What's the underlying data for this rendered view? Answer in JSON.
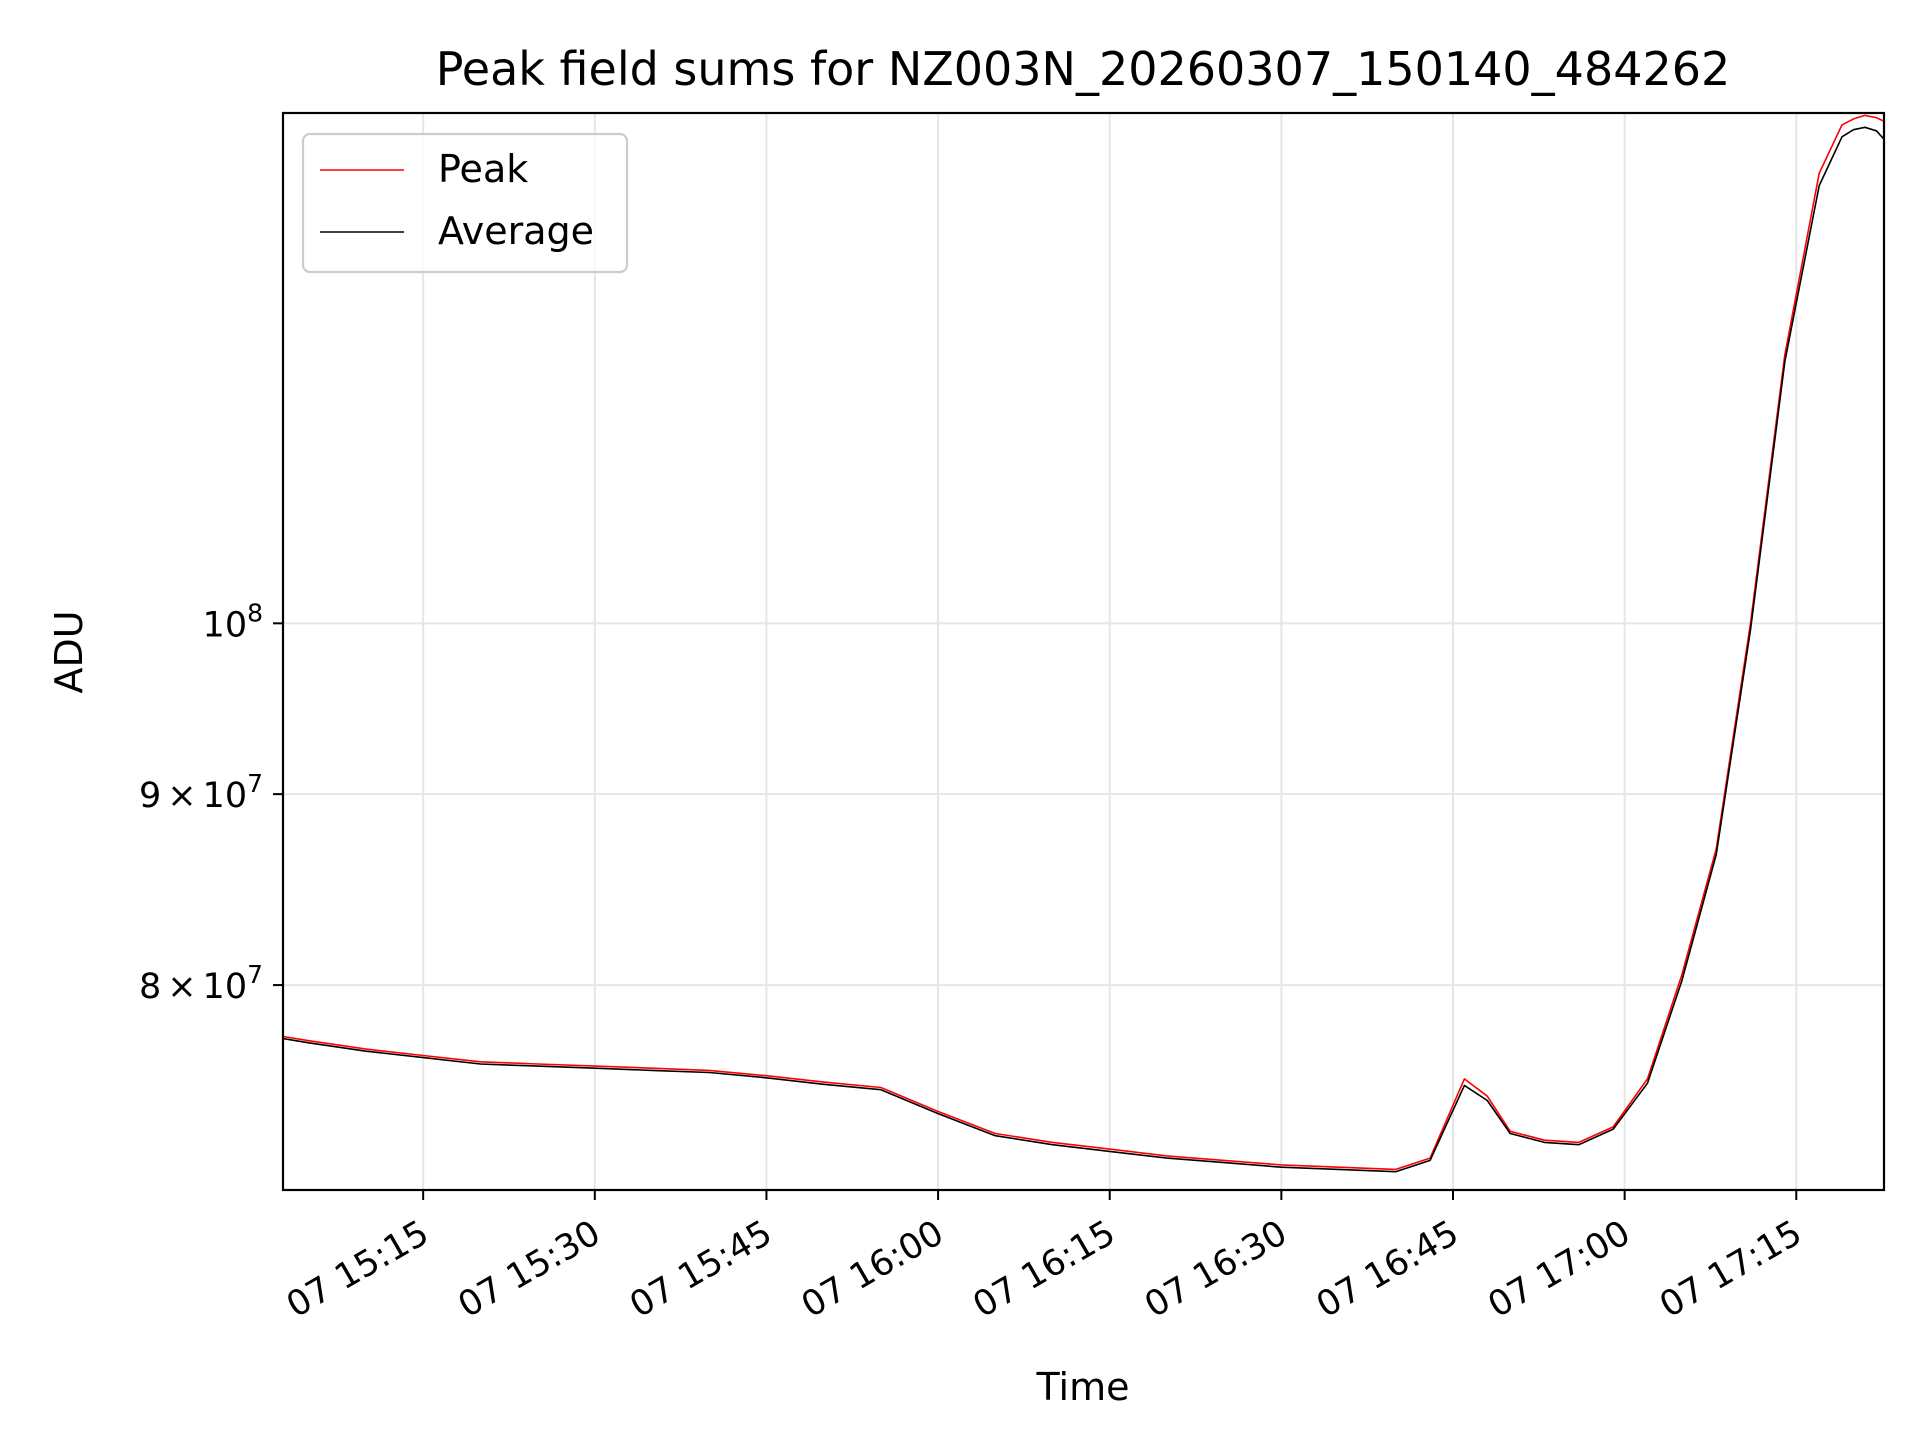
{
  "chart_data": {
    "type": "line",
    "title": "Peak field sums for NZ003N_20260307_150140_484262",
    "xlabel": "Time",
    "ylabel": "ADU",
    "x_axis": {
      "type": "time",
      "range": [
        "2026-03-07 15:02:45",
        "2026-03-07 17:22:40"
      ]
    },
    "y_axis": {
      "scale": "log",
      "range": [
        70500000,
        137000000
      ]
    },
    "x_ticks": [
      {
        "t": "2026-03-07 15:15",
        "label": "07 15:15"
      },
      {
        "t": "2026-03-07 15:30",
        "label": "07 15:30"
      },
      {
        "t": "2026-03-07 15:45",
        "label": "07 15:45"
      },
      {
        "t": "2026-03-07 16:00",
        "label": "07 16:00"
      },
      {
        "t": "2026-03-07 16:15",
        "label": "07 16:15"
      },
      {
        "t": "2026-03-07 16:30",
        "label": "07 16:30"
      },
      {
        "t": "2026-03-07 16:45",
        "label": "07 16:45"
      },
      {
        "t": "2026-03-07 17:00",
        "label": "07 17:00"
      },
      {
        "t": "2026-03-07 17:15",
        "label": "07 17:15"
      }
    ],
    "y_ticks": [
      {
        "v": 80000000,
        "mant": "8",
        "exp": "7"
      },
      {
        "v": 90000000,
        "mant": "9",
        "exp": "7"
      },
      {
        "v": 100000000,
        "mant": "",
        "exp": "8"
      }
    ],
    "grid": true,
    "legend_position": "upper-left",
    "series": [
      {
        "name": "Peak",
        "color": "#ff0000",
        "x": [
          "15:02:45",
          "15:05",
          "15:10",
          "15:15",
          "15:20",
          "15:25",
          "15:30",
          "15:35",
          "15:40",
          "15:45",
          "15:50",
          "15:55",
          "16:00",
          "16:05",
          "16:10",
          "16:15",
          "16:20",
          "16:25",
          "16:30",
          "16:35",
          "16:40",
          "16:43",
          "16:46",
          "16:48",
          "16:50",
          "16:53",
          "16:56",
          "16:59",
          "17:02",
          "17:05",
          "17:08",
          "17:11",
          "17:14",
          "17:17",
          "17:19",
          "17:20",
          "17:21",
          "17:22",
          "17:22:40"
        ],
        "y": [
          77500000,
          77300000,
          76900000,
          76600000,
          76300000,
          76200000,
          76100000,
          76000000,
          75900000,
          75650000,
          75350000,
          75100000,
          74000000,
          73000000,
          72600000,
          72300000,
          72000000,
          71800000,
          71600000,
          71500000,
          71400000,
          71900000,
          75500000,
          74700000,
          73100000,
          72700000,
          72600000,
          73300000,
          75500000,
          80500000,
          87000000,
          100000000,
          118000000,
          132000000,
          136000000,
          136500000,
          136800000,
          136600000,
          136300000
        ]
      },
      {
        "name": "Average",
        "color": "#000000",
        "x": [
          "15:02:45",
          "15:05",
          "15:10",
          "15:15",
          "15:20",
          "15:25",
          "15:30",
          "15:35",
          "15:40",
          "15:45",
          "15:50",
          "15:55",
          "16:00",
          "16:05",
          "16:10",
          "16:15",
          "16:20",
          "16:25",
          "16:30",
          "16:35",
          "16:40",
          "16:43",
          "16:46",
          "16:48",
          "16:50",
          "16:53",
          "16:56",
          "16:59",
          "17:02",
          "17:05",
          "17:08",
          "17:11",
          "17:14",
          "17:17",
          "17:19",
          "17:20",
          "17:21",
          "17:22",
          "17:22:40"
        ],
        "y": [
          77400000,
          77200000,
          76800000,
          76500000,
          76200000,
          76100000,
          76000000,
          75900000,
          75800000,
          75550000,
          75250000,
          75000000,
          73900000,
          72900000,
          72500000,
          72200000,
          71900000,
          71700000,
          71500000,
          71400000,
          71300000,
          71800000,
          75200000,
          74500000,
          73000000,
          72600000,
          72500000,
          73200000,
          75300000,
          80200000,
          86700000,
          99600000,
          117500000,
          131000000,
          135000000,
          135600000,
          135800000,
          135500000,
          134800000
        ]
      }
    ]
  }
}
